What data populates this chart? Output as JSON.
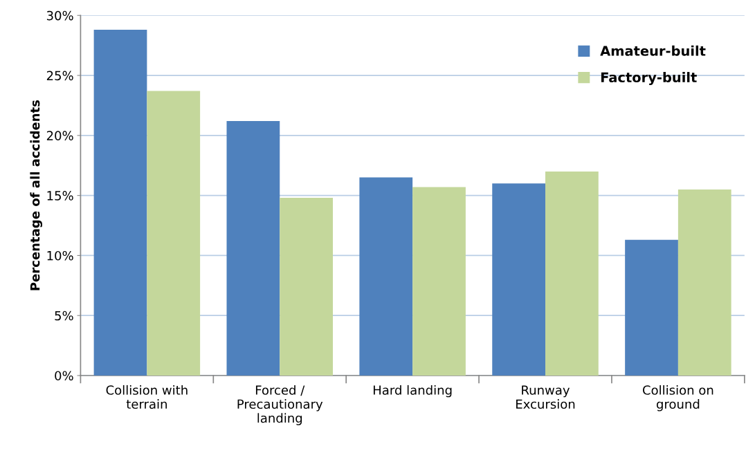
{
  "chart_data": {
    "type": "bar",
    "ylabel": "Percentage of all accidents",
    "categories": [
      "Collision with\nterrain",
      "Forced /\nPrecautionary\nlanding",
      "Hard landing",
      "Runway\nExcursion",
      "Collision on\nground"
    ],
    "series": [
      {
        "name": "Amateur-built",
        "color": "#4f81bd",
        "values": [
          28.8,
          21.2,
          16.5,
          16.0,
          11.3
        ]
      },
      {
        "name": "Factory-built",
        "color": "#c4d79b",
        "values": [
          23.7,
          14.8,
          15.7,
          17.0,
          15.5
        ]
      }
    ],
    "ylim": [
      0,
      30
    ],
    "yticks": [
      {
        "value": 0,
        "label": "0%"
      },
      {
        "value": 5,
        "label": "5%"
      },
      {
        "value": 10,
        "label": "10%"
      },
      {
        "value": 15,
        "label": "15%"
      },
      {
        "value": 20,
        "label": "20%"
      },
      {
        "value": 25,
        "label": "25%"
      },
      {
        "value": 30,
        "label": "30%"
      }
    ],
    "grid": "y",
    "legend": "top right"
  }
}
